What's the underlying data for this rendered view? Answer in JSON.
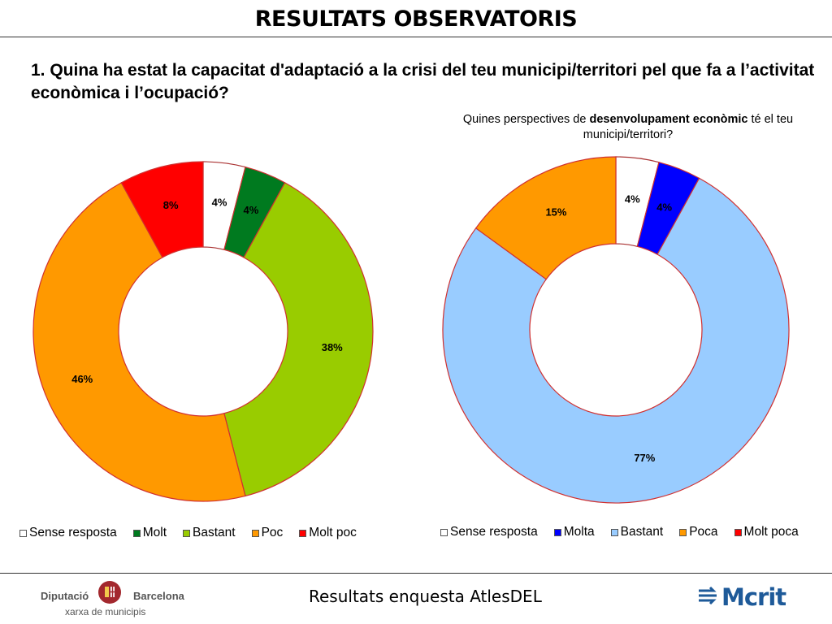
{
  "page": {
    "title": "RESULTATS OBSERVATORIS",
    "question": "1. Quina ha estat la capacitat d'adaptació a la crisi del teu municipi/territori pel que fa a l’activitat econòmica i l’ocupació?",
    "subtitle_pre": "Quines perspectives de ",
    "subtitle_bold": "desenvolupament econòmic",
    "subtitle_post": " té el teu municipi/territori?",
    "footer_text": "Resultats enquesta AtlesDEL",
    "logo_left_name_1": "Diputació",
    "logo_left_name_2": "Barcelona",
    "logo_left_sub": "xarxa de municipis",
    "logo_right_text": "Mcrit"
  },
  "chart_data": [
    {
      "type": "pie",
      "donut": true,
      "title": "",
      "categories": [
        "Sense resposta",
        "Molt",
        "Bastant",
        "Poc",
        "Molt poc"
      ],
      "values": [
        4,
        4,
        38,
        46,
        8
      ],
      "labels": [
        "4%",
        "4%",
        "38%",
        "46%",
        "8%"
      ],
      "colors": [
        "#ffffff",
        "#007a1f",
        "#99cc00",
        "#ff9900",
        "#ff0000"
      ],
      "legend": "bottom"
    },
    {
      "type": "pie",
      "donut": true,
      "title": "",
      "categories": [
        "Sense resposta",
        "Molta",
        "Bastant",
        "Poca",
        "Molt poca"
      ],
      "values": [
        4,
        4,
        77,
        15,
        0
      ],
      "labels": [
        "4%",
        "4%",
        "77%",
        "15%",
        ""
      ],
      "colors": [
        "#ffffff",
        "#0000ff",
        "#99ccff",
        "#ff9900",
        "#ff0000"
      ],
      "legend": "bottom"
    }
  ]
}
